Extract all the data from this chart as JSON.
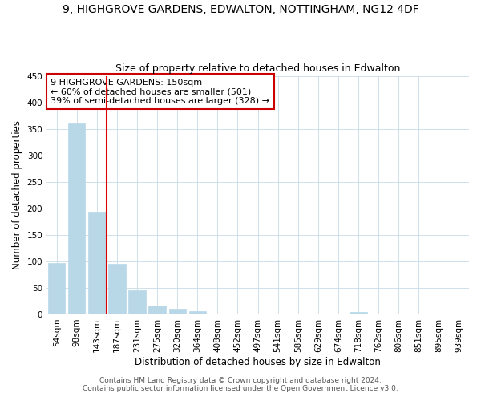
{
  "title": "9, HIGHGROVE GARDENS, EDWALTON, NOTTINGHAM, NG12 4DF",
  "subtitle": "Size of property relative to detached houses in Edwalton",
  "xlabel": "Distribution of detached houses by size in Edwalton",
  "ylabel": "Number of detached properties",
  "bar_labels": [
    "54sqm",
    "98sqm",
    "143sqm",
    "187sqm",
    "231sqm",
    "275sqm",
    "320sqm",
    "364sqm",
    "408sqm",
    "452sqm",
    "497sqm",
    "541sqm",
    "585sqm",
    "629sqm",
    "674sqm",
    "718sqm",
    "762sqm",
    "806sqm",
    "851sqm",
    "895sqm",
    "939sqm"
  ],
  "bar_values": [
    97,
    362,
    193,
    95,
    46,
    16,
    10,
    6,
    0,
    0,
    0,
    0,
    0,
    0,
    0,
    5,
    0,
    0,
    0,
    0,
    2
  ],
  "bar_color": "#b8d8e8",
  "bar_edge_color": "#b8d8e8",
  "ylim": [
    0,
    450
  ],
  "yticks": [
    0,
    50,
    100,
    150,
    200,
    250,
    300,
    350,
    400,
    450
  ],
  "vline_x": 2.5,
  "vline_color": "#dd0000",
  "annotation_lines": [
    "9 HIGHGROVE GARDENS: 150sqm",
    "← 60% of detached houses are smaller (501)",
    "39% of semi-detached houses are larger (328) →"
  ],
  "footer_line1": "Contains HM Land Registry data © Crown copyright and database right 2024.",
  "footer_line2": "Contains public sector information licensed under the Open Government Licence v3.0.",
  "background_color": "#ffffff",
  "grid_color": "#c8dce8",
  "title_fontsize": 10,
  "subtitle_fontsize": 9,
  "axis_label_fontsize": 8.5,
  "tick_fontsize": 7.5,
  "annotation_fontsize": 8,
  "footer_fontsize": 6.5
}
